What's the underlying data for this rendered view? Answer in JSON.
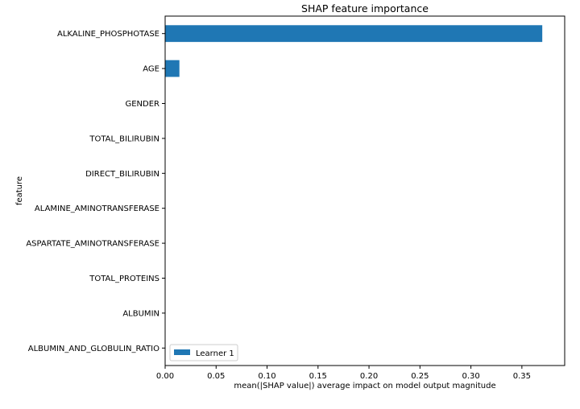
{
  "chart_data": {
    "type": "bar",
    "orientation": "horizontal",
    "title": "SHAP feature importance",
    "xlabel": "mean(|SHAP value|) average impact on model output magnitude",
    "ylabel": "feature",
    "categories": [
      "ALKALINE_PHOSPHOTASE",
      "AGE",
      "GENDER",
      "TOTAL_BILIRUBIN",
      "DIRECT_BILIRUBIN",
      "ALAMINE_AMINOTRANSFERASE",
      "ASPARTATE_AMINOTRANSFERASE",
      "TOTAL_PROTEINS",
      "ALBUMIN",
      "ALBUMIN_AND_GLOBULIN_RATIO"
    ],
    "series": [
      {
        "name": "Learner 1",
        "color": "#1f77b4",
        "values": [
          0.37,
          0.014,
          0,
          0,
          0,
          0,
          0,
          0,
          0,
          0
        ]
      }
    ],
    "xlim": [
      0,
      0.392
    ],
    "xticks": [
      0,
      0.05,
      0.1,
      0.15,
      0.2,
      0.25,
      0.3,
      0.35
    ],
    "xtick_labels": [
      "0.00",
      "0.05",
      "0.10",
      "0.15",
      "0.20",
      "0.25",
      "0.30",
      "0.35"
    ],
    "grid": false,
    "legend": "lower-left"
  }
}
